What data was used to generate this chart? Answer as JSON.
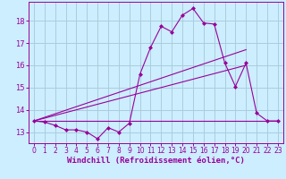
{
  "background_color": "#cceeff",
  "grid_color": "#aaccdd",
  "line_color": "#990099",
  "marker_color": "#990099",
  "xlabel": "Windchill (Refroidissement éolien,°C)",
  "xlabel_fontsize": 6.5,
  "tick_fontsize": 6,
  "xlim": [
    -0.5,
    23.5
  ],
  "ylim": [
    12.5,
    18.85
  ],
  "yticks": [
    13,
    14,
    15,
    16,
    17,
    18
  ],
  "xticks": [
    0,
    1,
    2,
    3,
    4,
    5,
    6,
    7,
    8,
    9,
    10,
    11,
    12,
    13,
    14,
    15,
    16,
    17,
    18,
    19,
    20,
    21,
    22,
    23
  ],
  "series1_x": [
    0,
    1,
    2,
    3,
    4,
    5,
    6,
    7,
    8,
    9,
    10,
    11,
    12,
    13,
    14,
    15,
    16,
    17,
    18,
    19,
    20,
    21,
    22,
    23
  ],
  "series1_y": [
    13.5,
    13.45,
    13.3,
    13.1,
    13.1,
    13.0,
    12.7,
    13.2,
    13.0,
    13.4,
    15.6,
    16.8,
    17.75,
    17.5,
    18.25,
    18.55,
    17.9,
    17.85,
    16.1,
    15.05,
    16.1,
    13.85,
    13.5,
    13.5
  ],
  "series2_x": [
    0,
    23
  ],
  "series2_y": [
    13.5,
    13.5
  ],
  "series3_x": [
    0,
    20
  ],
  "series3_y": [
    13.5,
    16.7
  ],
  "series4_x": [
    0,
    20
  ],
  "series4_y": [
    13.5,
    16.0
  ]
}
